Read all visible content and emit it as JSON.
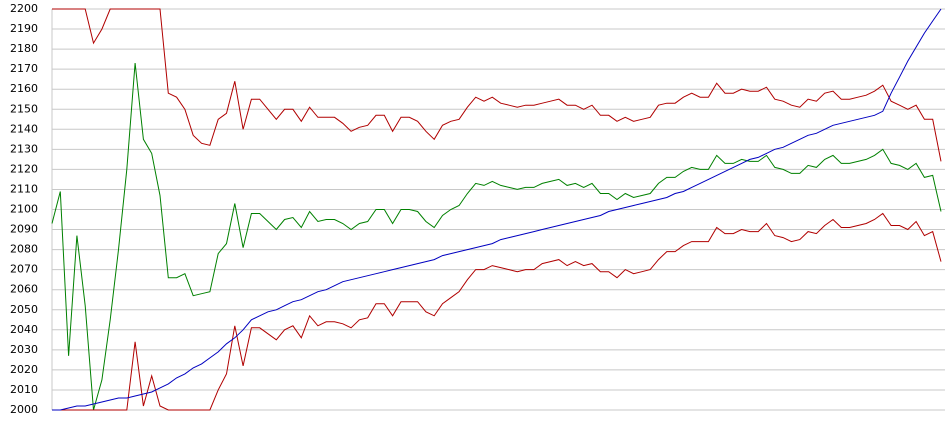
{
  "chart_data": {
    "type": "line",
    "ylim": [
      2000,
      2200
    ],
    "yticks": [
      2000,
      2010,
      2020,
      2030,
      2040,
      2050,
      2060,
      2070,
      2080,
      2090,
      2100,
      2110,
      2120,
      2130,
      2140,
      2150,
      2160,
      2170,
      2180,
      2190,
      2200
    ],
    "grid": true,
    "series": [
      {
        "color": "#b00000",
        "values": [
          2200,
          2200,
          2200,
          2200,
          2200,
          2183,
          2190,
          2200,
          2200,
          2200,
          2200,
          2200,
          2200,
          2200,
          2158,
          2156,
          2150,
          2137,
          2133,
          2132,
          2145,
          2148,
          2164,
          2140,
          2155,
          2155,
          2150,
          2145,
          2150,
          2150,
          2144,
          2151,
          2146,
          2146,
          2146,
          2143,
          2139,
          2141,
          2142,
          2147,
          2147,
          2139,
          2146,
          2146,
          2144,
          2139,
          2135,
          2142,
          2144,
          2145,
          2151,
          2156,
          2154,
          2156,
          2153,
          2152,
          2151,
          2152,
          2152,
          2153,
          2154,
          2155,
          2152,
          2152,
          2150,
          2152,
          2147,
          2147,
          2144,
          2146,
          2144,
          2145,
          2146,
          2152,
          2153,
          2153,
          2156,
          2158,
          2156,
          2156,
          2163,
          2158,
          2158,
          2160,
          2159,
          2159,
          2161,
          2155,
          2154,
          2152,
          2151,
          2155,
          2154,
          2158,
          2159,
          2155,
          2155,
          2156,
          2157,
          2159,
          2162,
          2154,
          2152,
          2150,
          2152,
          2145,
          2145,
          2124
        ]
      },
      {
        "color": "#008000",
        "values": [
          2093,
          2109,
          2027,
          2087,
          2052,
          2000,
          2015,
          2045,
          2080,
          2120,
          2173,
          2135,
          2128,
          2107,
          2066,
          2066,
          2068,
          2057,
          2058,
          2059,
          2078,
          2083,
          2103,
          2081,
          2098,
          2098,
          2094,
          2090,
          2095,
          2096,
          2091,
          2099,
          2094,
          2095,
          2095,
          2093,
          2090,
          2093,
          2094,
          2100,
          2100,
          2093,
          2100,
          2100,
          2099,
          2094,
          2091,
          2097,
          2100,
          2102,
          2108,
          2113,
          2112,
          2114,
          2112,
          2111,
          2110,
          2111,
          2111,
          2113,
          2114,
          2115,
          2112,
          2113,
          2111,
          2113,
          2108,
          2108,
          2105,
          2108,
          2106,
          2107,
          2108,
          2113,
          2116,
          2116,
          2119,
          2121,
          2120,
          2120,
          2127,
          2123,
          2123,
          2125,
          2124,
          2124,
          2127,
          2121,
          2120,
          2118,
          2118,
          2122,
          2121,
          2125,
          2127,
          2123,
          2123,
          2124,
          2125,
          2127,
          2130,
          2123,
          2122,
          2120,
          2123,
          2116,
          2117,
          2099
        ]
      },
      {
        "color": "#b00000",
        "values": [
          2000,
          2000,
          2000,
          2000,
          2000,
          2000,
          2000,
          2000,
          2000,
          2000,
          2034,
          2002,
          2017,
          2002,
          2000,
          2000,
          2000,
          2000,
          2000,
          2000,
          2010,
          2018,
          2042,
          2022,
          2041,
          2041,
          2038,
          2035,
          2040,
          2042,
          2036,
          2047,
          2042,
          2044,
          2044,
          2043,
          2041,
          2045,
          2046,
          2053,
          2053,
          2047,
          2054,
          2054,
          2054,
          2049,
          2047,
          2053,
          2056,
          2059,
          2065,
          2070,
          2070,
          2072,
          2071,
          2070,
          2069,
          2070,
          2070,
          2073,
          2074,
          2075,
          2072,
          2074,
          2072,
          2073,
          2069,
          2069,
          2066,
          2070,
          2068,
          2069,
          2070,
          2075,
          2079,
          2079,
          2082,
          2084,
          2084,
          2084,
          2091,
          2088,
          2088,
          2090,
          2089,
          2089,
          2093,
          2087,
          2086,
          2084,
          2085,
          2089,
          2088,
          2092,
          2095,
          2091,
          2091,
          2092,
          2093,
          2095,
          2098,
          2092,
          2092,
          2090,
          2094,
          2087,
          2089,
          2074
        ]
      },
      {
        "color": "#0000c0",
        "values": [
          2000,
          2000,
          2001,
          2002,
          2002,
          2003,
          2004,
          2005,
          2006,
          2006,
          2007,
          2008,
          2009,
          2011,
          2013,
          2016,
          2018,
          2021,
          2023,
          2026,
          2029,
          2033,
          2036,
          2040,
          2045,
          2047,
          2049,
          2050,
          2052,
          2054,
          2055,
          2057,
          2059,
          2060,
          2062,
          2064,
          2065,
          2066,
          2067,
          2068,
          2069,
          2070,
          2071,
          2072,
          2073,
          2074,
          2075,
          2077,
          2078,
          2079,
          2080,
          2081,
          2082,
          2083,
          2085,
          2086,
          2087,
          2088,
          2089,
          2090,
          2091,
          2092,
          2093,
          2094,
          2095,
          2096,
          2097,
          2099,
          2100,
          2101,
          2102,
          2103,
          2104,
          2105,
          2106,
          2108,
          2109,
          2111,
          2113,
          2115,
          2117,
          2119,
          2121,
          2123,
          2125,
          2126,
          2128,
          2130,
          2131,
          2133,
          2135,
          2137,
          2138,
          2140,
          2142,
          2143,
          2144,
          2145,
          2146,
          2147,
          2149,
          2158,
          2166,
          2174,
          2181,
          2188,
          2194,
          2200
        ]
      }
    ]
  }
}
